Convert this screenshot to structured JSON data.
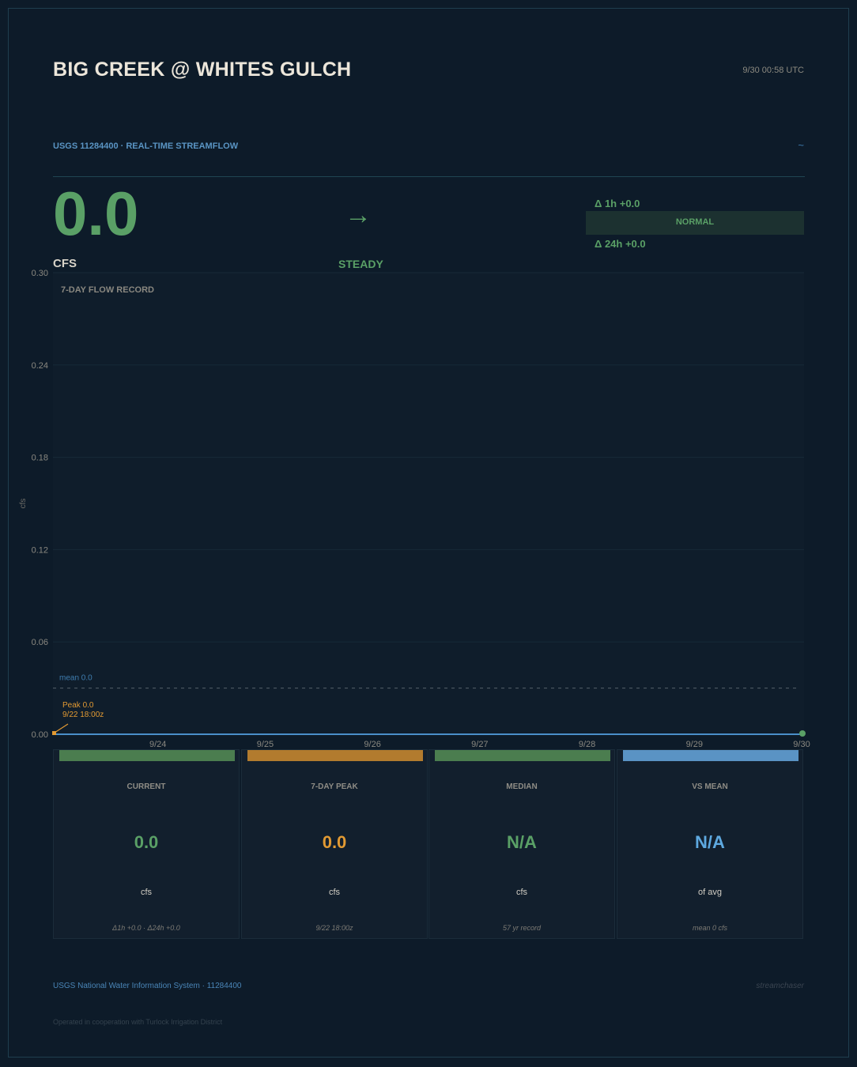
{
  "header": {
    "title": "BIG CREEK @ WHITES GULCH",
    "timestamp": "9/30  00:58 UTC",
    "subtitle": "USGS 11284400  ·  REAL-TIME STREAMFLOW",
    "wave_glyph": "~"
  },
  "current": {
    "value": "0.0",
    "unit": "CFS",
    "trend_arrow": "→",
    "trend_label": "STEADY",
    "delta_1h": "Δ 1h  +0.0",
    "delta_24h": "Δ 24h  +0.0",
    "status": "NORMAL"
  },
  "chart_data": {
    "type": "line",
    "title": "7-DAY FLOW RECORD",
    "ylabel": "cfs",
    "ylim": [
      0,
      0.3
    ],
    "yticks": [
      "0.30",
      "0.24",
      "0.18",
      "0.12",
      "0.06",
      "0.00"
    ],
    "ytick_values": [
      0.3,
      0.24,
      0.18,
      0.12,
      0.06,
      0.0
    ],
    "xlim": [
      "9/23 00:58",
      "9/30 00:58"
    ],
    "xticks": [
      "9/24",
      "9/25",
      "9/26",
      "9/27",
      "9/28",
      "9/29",
      "9/30"
    ],
    "xtick_days": [
      1,
      2,
      3,
      4,
      5,
      6,
      7
    ],
    "series": [
      {
        "x_days": [
          0,
          7
        ],
        "values": [
          0.0,
          0.0
        ]
      }
    ],
    "mean_label": "mean  0.0",
    "mean_value": 0.03,
    "peak": {
      "label_line1": "Peak  0.0",
      "label_line2": "9/22  18:00z",
      "x_day": 0,
      "value": 0.0
    },
    "current_point": {
      "x_day": 7,
      "value": 0.0
    },
    "grid": true
  },
  "cards": [
    {
      "label": "CURRENT",
      "value": "0.0",
      "unit": "cfs",
      "note": "Δ1h +0.0  ·  Δ24h +0.0",
      "color": "#4b7d4f",
      "value_color": "#5aa066"
    },
    {
      "label": "7-DAY PEAK",
      "value": "0.0",
      "unit": "cfs",
      "note": "9/22 18:00z",
      "color": "#b27b2e",
      "value_color": "#e29a33"
    },
    {
      "label": "MEDIAN",
      "value": "N/A",
      "unit": "cfs",
      "note": "57 yr record",
      "color": "#4b7d4f",
      "value_color": "#5aa066"
    },
    {
      "label": "VS MEAN",
      "value": "N/A",
      "unit": "of avg",
      "note": "mean 0 cfs",
      "color": "#5a93c4",
      "value_color": "#5ea9e0"
    }
  ],
  "footer": {
    "source": "USGS National Water Information System  ·  11284400",
    "brand": "streamchaser",
    "cooperation": "Operated in cooperation with Turlock Irrigation District"
  },
  "colors": {
    "background": "#0d1b29",
    "line": "#4a8fca",
    "peak": "#e29a33",
    "accent_green": "#5aa066"
  }
}
